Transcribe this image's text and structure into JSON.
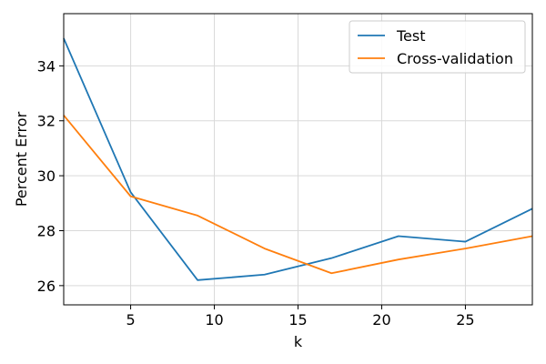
{
  "chart_data": {
    "type": "line",
    "title": "",
    "xlabel": "k",
    "ylabel": "Percent Error",
    "xlim": [
      1,
      29
    ],
    "ylim": [
      25.3,
      35.9
    ],
    "xticks": [
      5,
      10,
      15,
      20,
      25
    ],
    "yticks": [
      26,
      28,
      30,
      32,
      34
    ],
    "grid": true,
    "legend_position": "top-right",
    "x": [
      1,
      5,
      9,
      13,
      17,
      21,
      25,
      29
    ],
    "series": [
      {
        "name": "Test",
        "color": "#1f77b4",
        "values": [
          35.0,
          29.4,
          26.2,
          26.4,
          27.0,
          27.8,
          27.6,
          28.8
        ]
      },
      {
        "name": "Cross-validation",
        "color": "#ff7f0e",
        "values": [
          32.2,
          29.25,
          28.55,
          27.35,
          26.45,
          26.95,
          27.35,
          27.8
        ]
      }
    ]
  }
}
